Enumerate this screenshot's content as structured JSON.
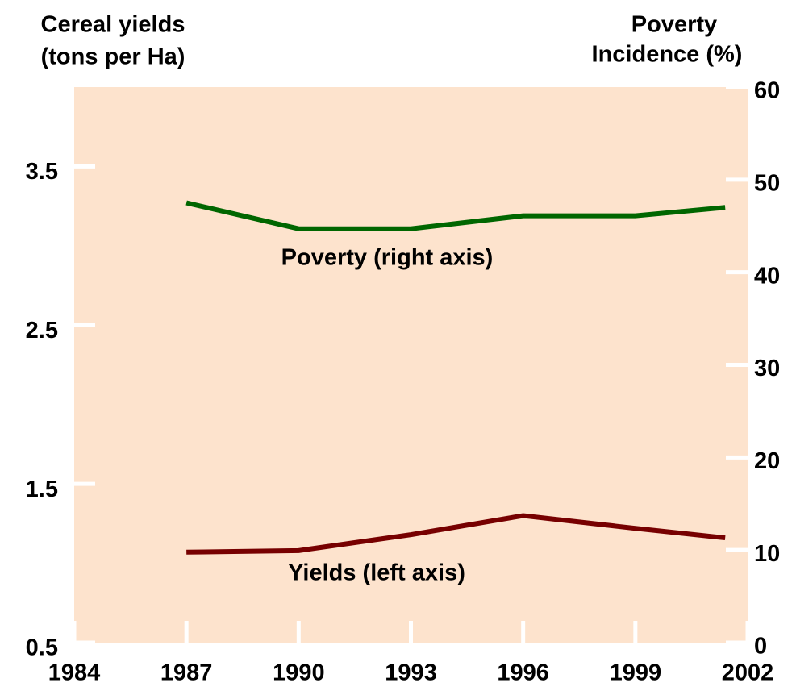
{
  "chart_data": {
    "type": "line",
    "y_label": [
      "Cereal yields",
      "(tons per Ha)"
    ],
    "y2_label": [
      "Poverty",
      "Incidence (%)"
    ],
    "xlim": [
      1984,
      2002
    ],
    "xticks": [
      1984,
      1987,
      1990,
      1993,
      1996,
      1999,
      2002
    ],
    "ylim": [
      0.5,
      4.0
    ],
    "yticks": [
      0.5,
      1.5,
      2.5,
      3.5
    ],
    "y2lim": [
      0,
      60
    ],
    "y2ticks": [
      0,
      10,
      20,
      30,
      40,
      50,
      60
    ],
    "background": "#fde3cd",
    "series": [
      {
        "name": "Poverty (right axis)",
        "color": "#006600",
        "axis": "y2",
        "x": [
          1987,
          1990,
          1993,
          1996,
          1999,
          2001.4
        ],
        "values": [
          47.5,
          44.7,
          44.7,
          46.1,
          46.1,
          47.0
        ]
      },
      {
        "name": "Yields (left axis)",
        "color": "#770000",
        "axis": "y",
        "x": [
          1987,
          1990,
          1993,
          1996,
          1999,
          2001.4
        ],
        "values": [
          1.07,
          1.08,
          1.18,
          1.3,
          1.22,
          1.16
        ]
      }
    ]
  }
}
